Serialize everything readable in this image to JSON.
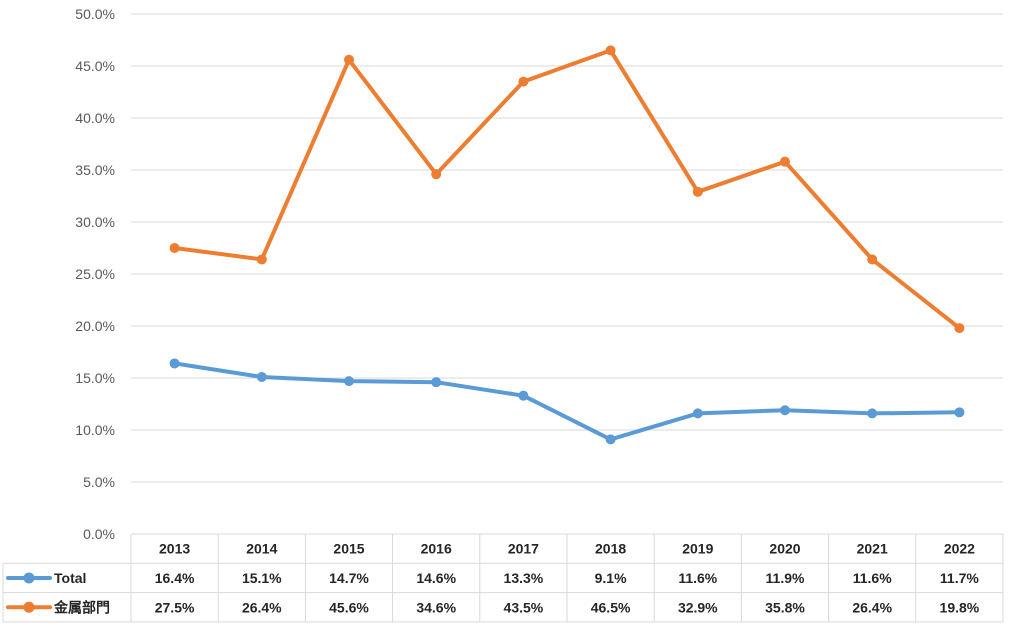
{
  "chart_data": {
    "type": "line",
    "title": "",
    "xlabel": "",
    "ylabel": "",
    "x": [
      "2013",
      "2014",
      "2015",
      "2016",
      "2017",
      "2018",
      "2019",
      "2020",
      "2021",
      "2022"
    ],
    "ylim": [
      0,
      50
    ],
    "y_ticks": [
      "0.0%",
      "5.0%",
      "10.0%",
      "15.0%",
      "20.0%",
      "25.0%",
      "30.0%",
      "35.0%",
      "40.0%",
      "45.0%",
      "50.0%"
    ],
    "grid": true,
    "legend": "data-table",
    "series": [
      {
        "name": "Total",
        "color": "#5B9BD5",
        "values": [
          16.4,
          15.1,
          14.7,
          14.6,
          13.3,
          9.1,
          11.6,
          11.9,
          11.6,
          11.7
        ],
        "labels": [
          "16.4%",
          "15.1%",
          "14.7%",
          "14.6%",
          "13.3%",
          "9.1%",
          "11.6%",
          "11.9%",
          "11.6%",
          "11.7%"
        ]
      },
      {
        "name": "金属部門",
        "color": "#ED7D31",
        "values": [
          27.5,
          26.4,
          45.6,
          34.6,
          43.5,
          46.5,
          32.9,
          35.8,
          26.4,
          19.8
        ],
        "labels": [
          "27.5%",
          "26.4%",
          "45.6%",
          "34.6%",
          "43.5%",
          "46.5%",
          "32.9%",
          "35.8%",
          "26.4%",
          "19.8%"
        ]
      }
    ],
    "colors": {
      "grid": "#D9D9D9",
      "axis_text": "#595959",
      "table_text": "#262626"
    }
  }
}
